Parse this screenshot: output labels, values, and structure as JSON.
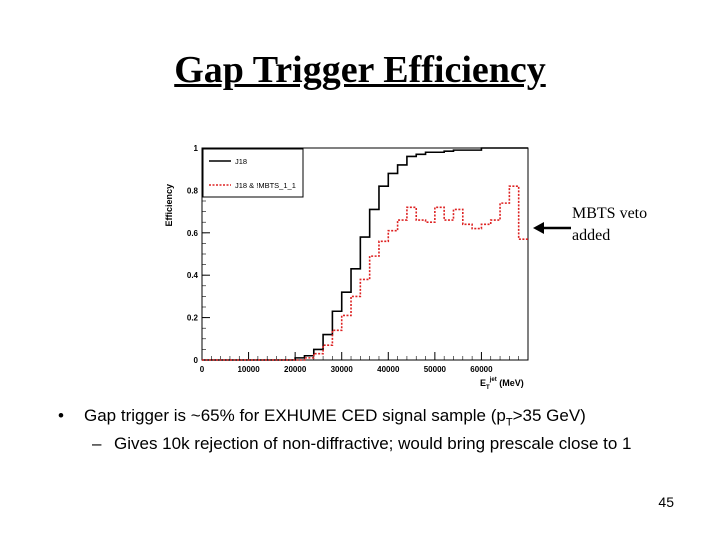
{
  "slide": {
    "title": "Gap Trigger Efficiency",
    "annotation_line1": "MBTS veto",
    "annotation_line2": "added",
    "bullet1_marker": "•",
    "bullet1_pre": "Gap trigger is ~65% for EXHUME CED signal sample (p",
    "bullet1_sub": "T",
    "bullet1_post": ">35 GeV)",
    "bullet2_marker": "–",
    "bullet2": "Gives 10k rejection of non-diffractive; would bring prescale close to 1",
    "page_number": "45"
  },
  "chart_data": {
    "type": "line",
    "style": "step-histogram",
    "ylabel": "Efficiency",
    "xlabel": "E_T^jet (MeV)",
    "xlim": [
      0,
      70000
    ],
    "ylim": [
      0,
      1.0
    ],
    "xticks": [
      "0",
      "10000",
      "20000",
      "30000",
      "40000",
      "50000",
      "60000",
      "70000"
    ],
    "yticks": [
      "0",
      "0.2",
      "0.4",
      "0.6",
      "0.8",
      "1"
    ],
    "legend_position": "top-left",
    "grid": false,
    "bin_edges": [
      0,
      2000,
      4000,
      6000,
      8000,
      10000,
      12000,
      14000,
      16000,
      18000,
      20000,
      22000,
      24000,
      26000,
      28000,
      30000,
      32000,
      34000,
      36000,
      38000,
      40000,
      42000,
      44000,
      46000,
      48000,
      50000,
      52000,
      54000,
      56000,
      58000,
      60000,
      62000,
      64000,
      66000,
      68000,
      70000
    ],
    "series": [
      {
        "name": "J18",
        "color": "#000000",
        "dash": "solid",
        "values": [
          0,
          0,
          0,
          0,
          0,
          0,
          0,
          0,
          0,
          0,
          0.01,
          0.02,
          0.05,
          0.12,
          0.23,
          0.32,
          0.43,
          0.58,
          0.71,
          0.82,
          0.88,
          0.92,
          0.96,
          0.97,
          0.98,
          0.98,
          0.985,
          0.99,
          0.99,
          0.99,
          1.0,
          1.0,
          1.0,
          1.0,
          1.0
        ]
      },
      {
        "name": "J18 & !MBTS_1_1",
        "color": "#dd2222",
        "dash": "dotted",
        "values": [
          0,
          0,
          0,
          0,
          0,
          0,
          0,
          0,
          0,
          0,
          0,
          0.01,
          0.03,
          0.07,
          0.14,
          0.21,
          0.3,
          0.38,
          0.49,
          0.56,
          0.61,
          0.66,
          0.72,
          0.66,
          0.65,
          0.72,
          0.66,
          0.71,
          0.64,
          0.62,
          0.64,
          0.66,
          0.74,
          0.82,
          0.57
        ]
      }
    ]
  }
}
